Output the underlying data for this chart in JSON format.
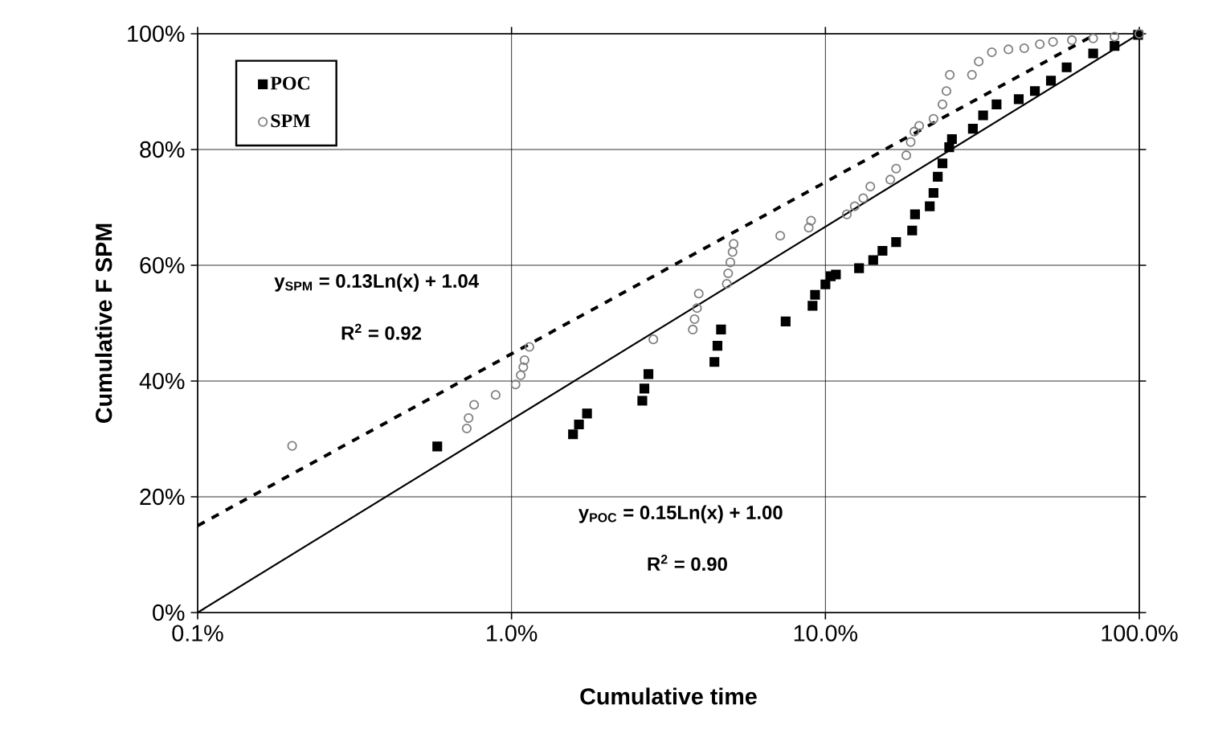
{
  "chart_data": {
    "type": "scatter",
    "xlabel": "Cumulative time",
    "ylabel": "Cumulative F SPM",
    "log": "x",
    "grid": true,
    "legend": "top left",
    "xlim": [
      0.1,
      100
    ],
    "ylim": [
      0,
      100
    ],
    "xticks": [
      {
        "value": 0.1,
        "label": "0.1%"
      },
      {
        "value": 1,
        "label": "1.0%"
      },
      {
        "value": 10,
        "label": "10.0%"
      },
      {
        "value": 100,
        "label": "100.0%"
      }
    ],
    "yticks": [
      {
        "value": 0,
        "label": "0%"
      },
      {
        "value": 20,
        "label": "20%"
      },
      {
        "value": 40,
        "label": "40%"
      },
      {
        "value": 60,
        "label": "60%"
      },
      {
        "value": 80,
        "label": "80%"
      },
      {
        "value": 100,
        "label": "100%"
      }
    ],
    "series": [
      {
        "name": "POC",
        "marker": "square",
        "color": "#000000",
        "x": [
          0.58,
          1.57,
          1.64,
          1.74,
          2.61,
          2.65,
          2.73,
          4.43,
          4.53,
          4.65,
          7.47,
          9.1,
          9.27,
          10.0,
          10.4,
          10.8,
          12.8,
          14.2,
          15.2,
          16.8,
          18.9,
          19.3,
          21.5,
          22.1,
          22.8,
          23.6,
          24.8,
          25.3,
          29.5,
          31.8,
          35.1,
          41.3,
          46.5,
          52.3,
          58.7,
          71.3,
          83.4,
          99.1
        ],
        "values": [
          28.7,
          30.8,
          32.5,
          34.4,
          36.6,
          38.7,
          41.2,
          43.3,
          46.1,
          48.9,
          50.3,
          53,
          54.9,
          56.7,
          58.1,
          58.4,
          59.5,
          60.9,
          62.5,
          64,
          66,
          68.8,
          70.2,
          72.5,
          75.3,
          77.6,
          80.4,
          81.8,
          83.6,
          85.9,
          87.8,
          88.7,
          90.1,
          91.9,
          94.2,
          96.6,
          97.9,
          99.8
        ]
      },
      {
        "name": "SPM",
        "marker": "circle",
        "color": "#808080",
        "x": [
          0.2,
          0.72,
          0.73,
          0.76,
          0.89,
          1.03,
          1.07,
          1.09,
          1.1,
          1.14,
          2.83,
          3.78,
          3.83,
          3.9,
          3.95,
          4.85,
          4.9,
          4.98,
          5.06,
          5.1,
          7.18,
          8.85,
          9.0,
          11.7,
          12.4,
          13.2,
          13.9,
          16.1,
          16.8,
          18.1,
          18.7,
          19.2,
          19.9,
          22.1,
          23.6,
          24.3,
          24.9,
          29.3,
          30.8,
          33.9,
          38.3,
          43.0,
          48.2,
          53.1,
          61.0,
          71.3,
          83.4,
          100
        ],
        "values": [
          28.8,
          31.8,
          33.6,
          35.9,
          37.6,
          39.4,
          41,
          42.4,
          43.6,
          45.9,
          47.2,
          48.9,
          50.7,
          52.6,
          55.1,
          56.8,
          58.6,
          60.5,
          62.3,
          63.7,
          65.1,
          66.5,
          67.7,
          68.8,
          70.2,
          71.6,
          73.6,
          74.8,
          76.7,
          79,
          81.3,
          83.1,
          84.1,
          85.3,
          87.8,
          90.1,
          92.9,
          92.9,
          95.2,
          96.8,
          97.3,
          97.5,
          98.2,
          98.6,
          98.9,
          99.2,
          99.5,
          100
        ]
      },
      {
        "type": "line",
        "line_style": "dashed",
        "color": "#000000",
        "x": [
          0.1,
          73
        ],
        "values": [
          15,
          100
        ]
      },
      {
        "type": "line",
        "line_style": "solid",
        "color": "#000000",
        "x": [
          0.1,
          100
        ],
        "values": [
          0,
          100
        ]
      }
    ],
    "annotations": [
      "y$_{SPM}$ = 0.13Ln(x) + 1.04",
      "R$^{2}$ = 0.92",
      "y$_{POC}$ = 0.15Ln(x) + 1.00",
      "R$^{2}$ = 0.90"
    ]
  }
}
